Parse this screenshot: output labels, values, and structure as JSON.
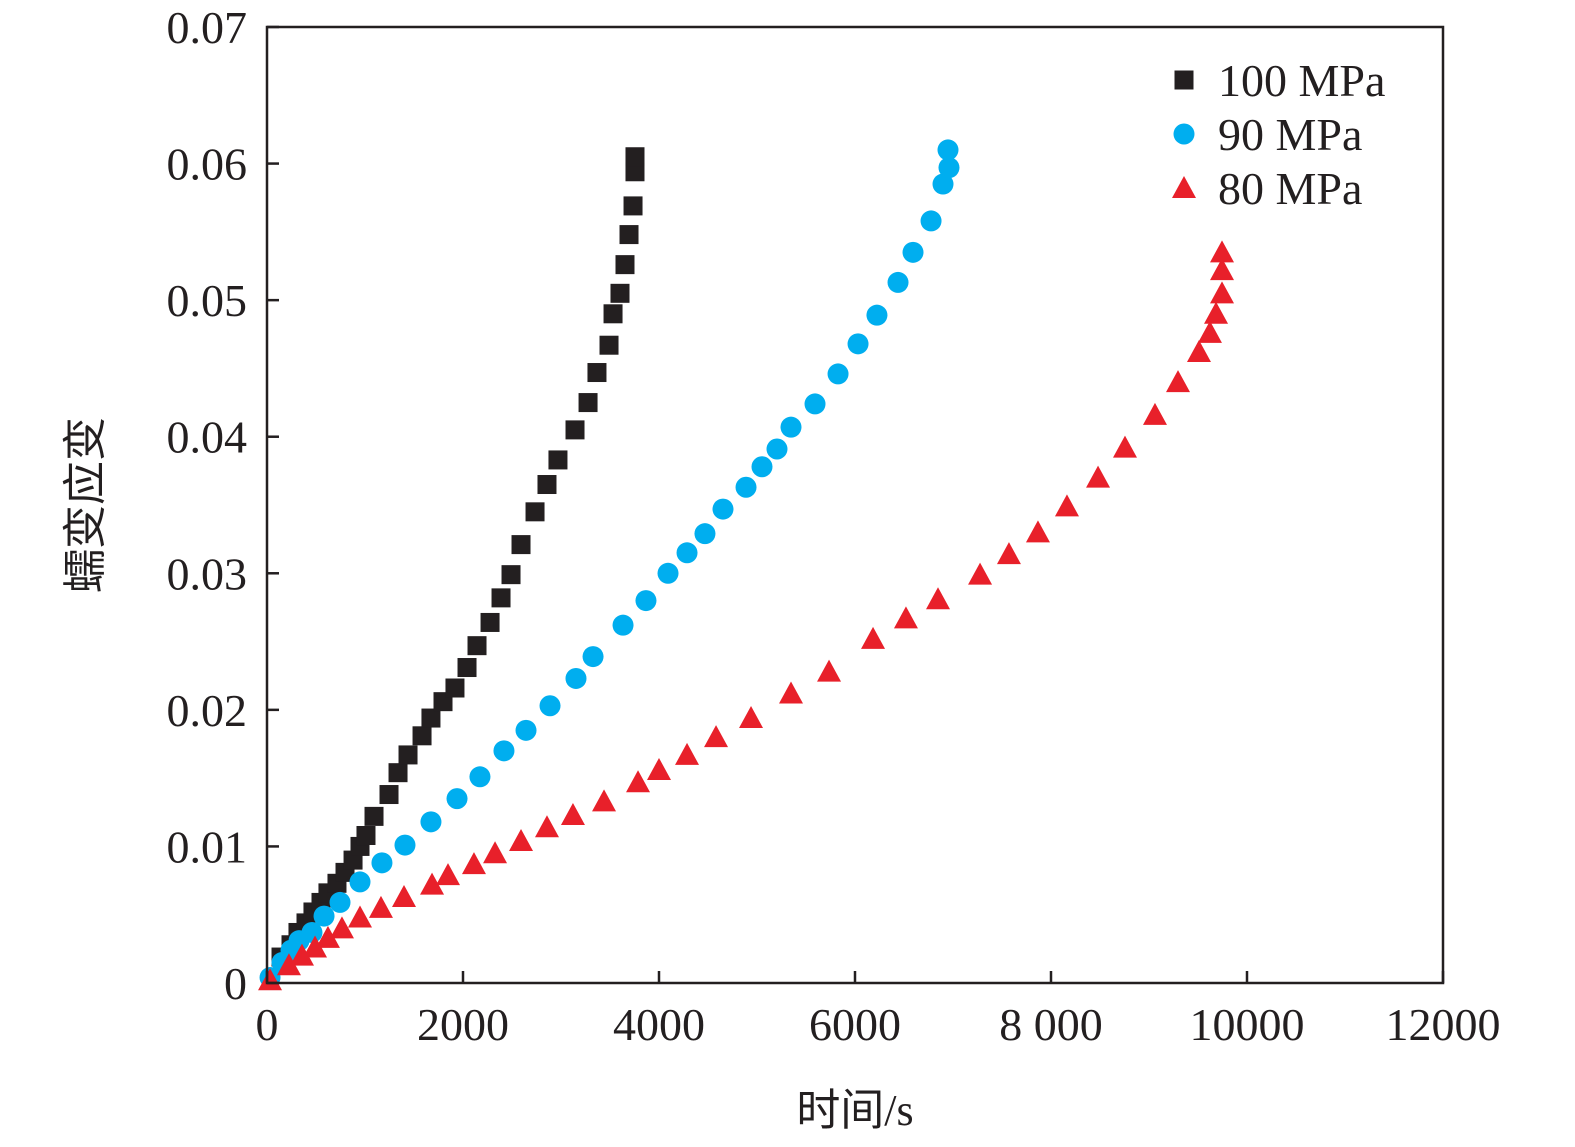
{
  "chart_data": {
    "type": "scatter",
    "title": "",
    "xlabel": "时间/s",
    "ylabel": "蠕变应变",
    "xlim": [
      0,
      12000
    ],
    "ylim": [
      0,
      0.07
    ],
    "xticks": [
      0,
      2000,
      4000,
      6000,
      8000,
      10000,
      12000
    ],
    "xtick_labels": [
      "0",
      "2000",
      "4000",
      "6000",
      "8 000",
      "10000",
      "12000"
    ],
    "yticks": [
      0,
      0.01,
      0.02,
      0.03,
      0.04,
      0.05,
      0.06,
      0.07
    ],
    "ytick_labels": [
      "0",
      "0.01",
      "0.02",
      "0.03",
      "0.04",
      "0.05",
      "0.06",
      "0.07"
    ],
    "grid": false,
    "legend_position": "top-right",
    "series": [
      {
        "name": "100 MPa",
        "marker": "square",
        "color": "#231f20",
        "x": [
          143,
          245,
          316,
          398,
          469,
          551,
          622,
          714,
          796,
          878,
          949,
          1010,
          1092,
          1245,
          1337,
          1439,
          1582,
          1673,
          1796,
          1918,
          2041,
          2143,
          2276,
          2388,
          2490,
          2592,
          2735,
          2857,
          2969,
          3143,
          3276,
          3367,
          3490,
          3531,
          3602,
          3653,
          3694,
          3735,
          3755,
          3755
        ],
        "y": [
          0.0019,
          0.0028,
          0.0037,
          0.0044,
          0.0052,
          0.0059,
          0.0066,
          0.0073,
          0.0081,
          0.009,
          0.01,
          0.0108,
          0.0122,
          0.0138,
          0.0154,
          0.0167,
          0.0181,
          0.0194,
          0.0206,
          0.0216,
          0.0231,
          0.0247,
          0.0264,
          0.0282,
          0.0299,
          0.0321,
          0.0345,
          0.0365,
          0.0383,
          0.0405,
          0.0425,
          0.0447,
          0.0467,
          0.049,
          0.0505,
          0.0526,
          0.0548,
          0.0569,
          0.0594,
          0.0605
        ]
      },
      {
        "name": "90 MPa",
        "marker": "circle",
        "color": "#00aeef",
        "x": [
          31,
          153,
          245,
          327,
          459,
          582,
          745,
          949,
          1173,
          1408,
          1673,
          1939,
          2173,
          2418,
          2643,
          2888,
          3153,
          3327,
          3633,
          3867,
          4092,
          4286,
          4469,
          4653,
          4888,
          5051,
          5204,
          5347,
          5592,
          5827,
          6031,
          6224,
          6439,
          6592,
          6776,
          6898,
          6959,
          6949
        ],
        "y": [
          0.0004,
          0.0015,
          0.0024,
          0.0031,
          0.0037,
          0.0049,
          0.0059,
          0.0074,
          0.0088,
          0.0101,
          0.0118,
          0.0135,
          0.0151,
          0.017,
          0.0185,
          0.0203,
          0.0223,
          0.0239,
          0.0262,
          0.028,
          0.03,
          0.0315,
          0.0329,
          0.0347,
          0.0363,
          0.0378,
          0.0391,
          0.0407,
          0.0424,
          0.0446,
          0.0468,
          0.0489,
          0.0513,
          0.0535,
          0.0558,
          0.0585,
          0.0597,
          0.061
        ]
      },
      {
        "name": "80 MPa",
        "marker": "triangle",
        "color": "#e8202a",
        "x": [
          31,
          224,
          357,
          490,
          622,
          765,
          949,
          1163,
          1398,
          1684,
          1847,
          2112,
          2327,
          2592,
          2857,
          3122,
          3439,
          3786,
          4000,
          4286,
          4582,
          4939,
          5347,
          5735,
          6184,
          6520,
          6847,
          7276,
          7571,
          7867,
          8163,
          8480,
          8755,
          9061,
          9296,
          9510,
          9622,
          9684,
          9745,
          9745,
          9745
        ],
        "y": [
          0.0002,
          0.0013,
          0.002,
          0.0026,
          0.0033,
          0.004,
          0.0048,
          0.0055,
          0.0063,
          0.0072,
          0.0079,
          0.0087,
          0.0095,
          0.0104,
          0.0114,
          0.0123,
          0.0133,
          0.0147,
          0.0156,
          0.0167,
          0.018,
          0.0194,
          0.0212,
          0.0228,
          0.0252,
          0.0267,
          0.0281,
          0.0299,
          0.0314,
          0.033,
          0.0349,
          0.037,
          0.0392,
          0.0416,
          0.044,
          0.0462,
          0.0476,
          0.049,
          0.0505,
          0.0522,
          0.0535
        ]
      }
    ]
  }
}
